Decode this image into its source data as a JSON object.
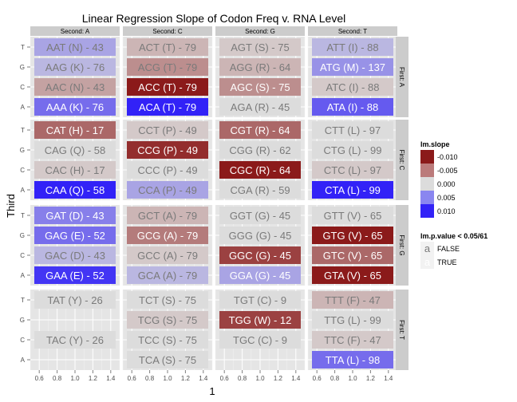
{
  "chart_data": {
    "type": "heatmap",
    "title": "Linear Regression Slope of Codon Freq v. RNA Level",
    "xlabel": "1",
    "ylabel": "Third",
    "col_facet_labels": [
      "Second: A",
      "Second: C",
      "Second: G",
      "Second: T"
    ],
    "row_facet_labels": [
      "First: A",
      "First: C",
      "First: G",
      "First: T"
    ],
    "third_levels_top_to_bottom": [
      "T",
      "G",
      "C",
      "A"
    ],
    "x_ticks": [
      "0.6",
      "0.8",
      "1.0",
      "1.2",
      "1.4"
    ],
    "xlim": [
      0.5,
      1.5
    ],
    "legend_fill_title": "lm.slope",
    "legend_fill": [
      {
        "label": "-0.010",
        "value": -0.01,
        "color": "#8b1a1a"
      },
      {
        "label": "-0.005",
        "value": -0.005,
        "color": "#bb7b7b"
      },
      {
        "label": "0.000",
        "value": 0.0,
        "color": "#dcdcdc"
      },
      {
        "label": "0.005",
        "value": 0.005,
        "color": "#8a86f0"
      },
      {
        "label": "0.010",
        "value": 0.01,
        "color": "#3222f7"
      }
    ],
    "legend_text_title": "lm.p.value < 0.05/61",
    "legend_text": [
      {
        "key": "a",
        "label": "FALSE",
        "color": "#7a7a7a"
      },
      {
        "key": "a",
        "label": "TRUE",
        "color": "#ffffff"
      }
    ],
    "cells": [
      {
        "first": "A",
        "second": "A",
        "third": "T",
        "label": "AAT (N) - 43",
        "slope": 0.003,
        "significant": false
      },
      {
        "first": "A",
        "second": "A",
        "third": "G",
        "label": "AAG (K) - 76",
        "slope": 0.002,
        "significant": false
      },
      {
        "first": "A",
        "second": "A",
        "third": "C",
        "label": "AAC (N) - 43",
        "slope": -0.003,
        "significant": false
      },
      {
        "first": "A",
        "second": "A",
        "third": "A",
        "label": "AAA (K) - 76",
        "slope": 0.006,
        "significant": true
      },
      {
        "first": "A",
        "second": "C",
        "third": "T",
        "label": "ACT (T) - 79",
        "slope": -0.002,
        "significant": false
      },
      {
        "first": "A",
        "second": "C",
        "third": "G",
        "label": "ACG (T) - 79",
        "slope": -0.004,
        "significant": false
      },
      {
        "first": "A",
        "second": "C",
        "third": "C",
        "label": "ACC (T) - 79",
        "slope": -0.01,
        "significant": true
      },
      {
        "first": "A",
        "second": "C",
        "third": "A",
        "label": "ACA (T) - 79",
        "slope": 0.01,
        "significant": true
      },
      {
        "first": "A",
        "second": "G",
        "third": "T",
        "label": "AGT (S) - 75",
        "slope": -0.001,
        "significant": false
      },
      {
        "first": "A",
        "second": "G",
        "third": "G",
        "label": "AGG (R) - 64",
        "slope": -0.002,
        "significant": false
      },
      {
        "first": "A",
        "second": "G",
        "third": "C",
        "label": "AGC (S) - 75",
        "slope": -0.004,
        "significant": true
      },
      {
        "first": "A",
        "second": "G",
        "third": "A",
        "label": "AGA (R) - 45",
        "slope": 0.0,
        "significant": false
      },
      {
        "first": "A",
        "second": "T",
        "third": "T",
        "label": "ATT (I) - 88",
        "slope": 0.002,
        "significant": false
      },
      {
        "first": "A",
        "second": "T",
        "third": "G",
        "label": "ATG (M) - 137",
        "slope": 0.004,
        "significant": true
      },
      {
        "first": "A",
        "second": "T",
        "third": "C",
        "label": "ATC (I) - 88",
        "slope": -0.001,
        "significant": false
      },
      {
        "first": "A",
        "second": "T",
        "third": "A",
        "label": "ATA (I) - 88",
        "slope": 0.007,
        "significant": true
      },
      {
        "first": "C",
        "second": "A",
        "third": "T",
        "label": "CAT (H) - 17",
        "slope": -0.006,
        "significant": true
      },
      {
        "first": "C",
        "second": "A",
        "third": "G",
        "label": "CAG (Q) - 58",
        "slope": 0.0,
        "significant": false
      },
      {
        "first": "C",
        "second": "A",
        "third": "C",
        "label": "CAC (H) - 17",
        "slope": -0.001,
        "significant": false
      },
      {
        "first": "C",
        "second": "A",
        "third": "A",
        "label": "CAA (Q) - 58",
        "slope": 0.011,
        "significant": true
      },
      {
        "first": "C",
        "second": "C",
        "third": "T",
        "label": "CCT (P) - 49",
        "slope": -0.001,
        "significant": false
      },
      {
        "first": "C",
        "second": "C",
        "third": "G",
        "label": "CCG (P) - 49",
        "slope": -0.009,
        "significant": true
      },
      {
        "first": "C",
        "second": "C",
        "third": "C",
        "label": "CCC (P) - 49",
        "slope": 0.0,
        "significant": false
      },
      {
        "first": "C",
        "second": "C",
        "third": "A",
        "label": "CCA (P) - 49",
        "slope": 0.003,
        "significant": false
      },
      {
        "first": "C",
        "second": "G",
        "third": "T",
        "label": "CGT (R) - 64",
        "slope": -0.006,
        "significant": true
      },
      {
        "first": "C",
        "second": "G",
        "third": "G",
        "label": "CGG (R) - 62",
        "slope": 0.0,
        "significant": false
      },
      {
        "first": "C",
        "second": "G",
        "third": "C",
        "label": "CGC (R) - 64",
        "slope": -0.01,
        "significant": true
      },
      {
        "first": "C",
        "second": "G",
        "third": "A",
        "label": "CGA (R) - 59",
        "slope": 0.0,
        "significant": false
      },
      {
        "first": "C",
        "second": "T",
        "third": "T",
        "label": "CTT (L) - 97",
        "slope": 0.0,
        "significant": false
      },
      {
        "first": "C",
        "second": "T",
        "third": "G",
        "label": "CTG (L) - 99",
        "slope": 0.0,
        "significant": false
      },
      {
        "first": "C",
        "second": "T",
        "third": "C",
        "label": "CTC (L) - 97",
        "slope": -0.001,
        "significant": false
      },
      {
        "first": "C",
        "second": "T",
        "third": "A",
        "label": "CTA (L) - 99",
        "slope": 0.011,
        "significant": true
      },
      {
        "first": "G",
        "second": "A",
        "third": "T",
        "label": "GAT (D) - 43",
        "slope": 0.005,
        "significant": true
      },
      {
        "first": "G",
        "second": "A",
        "third": "G",
        "label": "GAG (E) - 52",
        "slope": 0.006,
        "significant": true
      },
      {
        "first": "G",
        "second": "A",
        "third": "C",
        "label": "GAC (D) - 43",
        "slope": 0.002,
        "significant": false
      },
      {
        "first": "G",
        "second": "A",
        "third": "A",
        "label": "GAA (E) - 52",
        "slope": 0.009,
        "significant": true
      },
      {
        "first": "G",
        "second": "C",
        "third": "T",
        "label": "GCT (A) - 79",
        "slope": -0.002,
        "significant": false
      },
      {
        "first": "G",
        "second": "C",
        "third": "G",
        "label": "GCG (A) - 79",
        "slope": -0.005,
        "significant": true
      },
      {
        "first": "G",
        "second": "C",
        "third": "C",
        "label": "GCC (A) - 79",
        "slope": -0.001,
        "significant": false
      },
      {
        "first": "G",
        "second": "C",
        "third": "A",
        "label": "GCA (A) - 79",
        "slope": 0.002,
        "significant": false
      },
      {
        "first": "G",
        "second": "G",
        "third": "T",
        "label": "GGT (G) - 45",
        "slope": 0.0,
        "significant": false
      },
      {
        "first": "G",
        "second": "G",
        "third": "G",
        "label": "GGG (G) - 45",
        "slope": 0.0,
        "significant": false
      },
      {
        "first": "G",
        "second": "G",
        "third": "C",
        "label": "GGC (G) - 45",
        "slope": -0.008,
        "significant": true
      },
      {
        "first": "G",
        "second": "G",
        "third": "A",
        "label": "GGA (G) - 45",
        "slope": 0.003,
        "significant": true
      },
      {
        "first": "G",
        "second": "T",
        "third": "T",
        "label": "GTT (V) - 65",
        "slope": 0.0,
        "significant": false
      },
      {
        "first": "G",
        "second": "T",
        "third": "G",
        "label": "GTG (V) - 65",
        "slope": -0.01,
        "significant": true
      },
      {
        "first": "G",
        "second": "T",
        "third": "C",
        "label": "GTC (V) - 65",
        "slope": -0.006,
        "significant": true
      },
      {
        "first": "G",
        "second": "T",
        "third": "A",
        "label": "GTA (V) - 65",
        "slope": -0.01,
        "significant": true
      },
      {
        "first": "T",
        "second": "A",
        "third": "T",
        "label": "TAT (Y) - 26",
        "slope": 0.0,
        "significant": false
      },
      {
        "first": "T",
        "second": "A",
        "third": "C",
        "label": "TAC (Y) - 26",
        "slope": 0.0,
        "significant": false
      },
      {
        "first": "T",
        "second": "C",
        "third": "T",
        "label": "TCT (S) - 75",
        "slope": 0.0,
        "significant": false
      },
      {
        "first": "T",
        "second": "C",
        "third": "G",
        "label": "TCG (S) - 75",
        "slope": -0.001,
        "significant": false
      },
      {
        "first": "T",
        "second": "C",
        "third": "C",
        "label": "TCC (S) - 75",
        "slope": 0.0,
        "significant": false
      },
      {
        "first": "T",
        "second": "C",
        "third": "A",
        "label": "TCA (S) - 75",
        "slope": 0.0,
        "significant": false
      },
      {
        "first": "T",
        "second": "G",
        "third": "T",
        "label": "TGT (C) - 9",
        "slope": 0.0,
        "significant": false
      },
      {
        "first": "T",
        "second": "G",
        "third": "G",
        "label": "TGG (W) - 12",
        "slope": -0.008,
        "significant": true
      },
      {
        "first": "T",
        "second": "G",
        "third": "C",
        "label": "TGC (C) - 9",
        "slope": 0.0,
        "significant": false
      },
      {
        "first": "T",
        "second": "T",
        "third": "T",
        "label": "TTT (F) - 47",
        "slope": -0.002,
        "significant": false
      },
      {
        "first": "T",
        "second": "T",
        "third": "G",
        "label": "TTG (L) - 99",
        "slope": 0.0,
        "significant": false
      },
      {
        "first": "T",
        "second": "T",
        "third": "C",
        "label": "TTC (F) - 47",
        "slope": -0.001,
        "significant": false
      },
      {
        "first": "T",
        "second": "T",
        "third": "A",
        "label": "TTA (L) - 98",
        "slope": 0.006,
        "significant": true
      }
    ]
  }
}
